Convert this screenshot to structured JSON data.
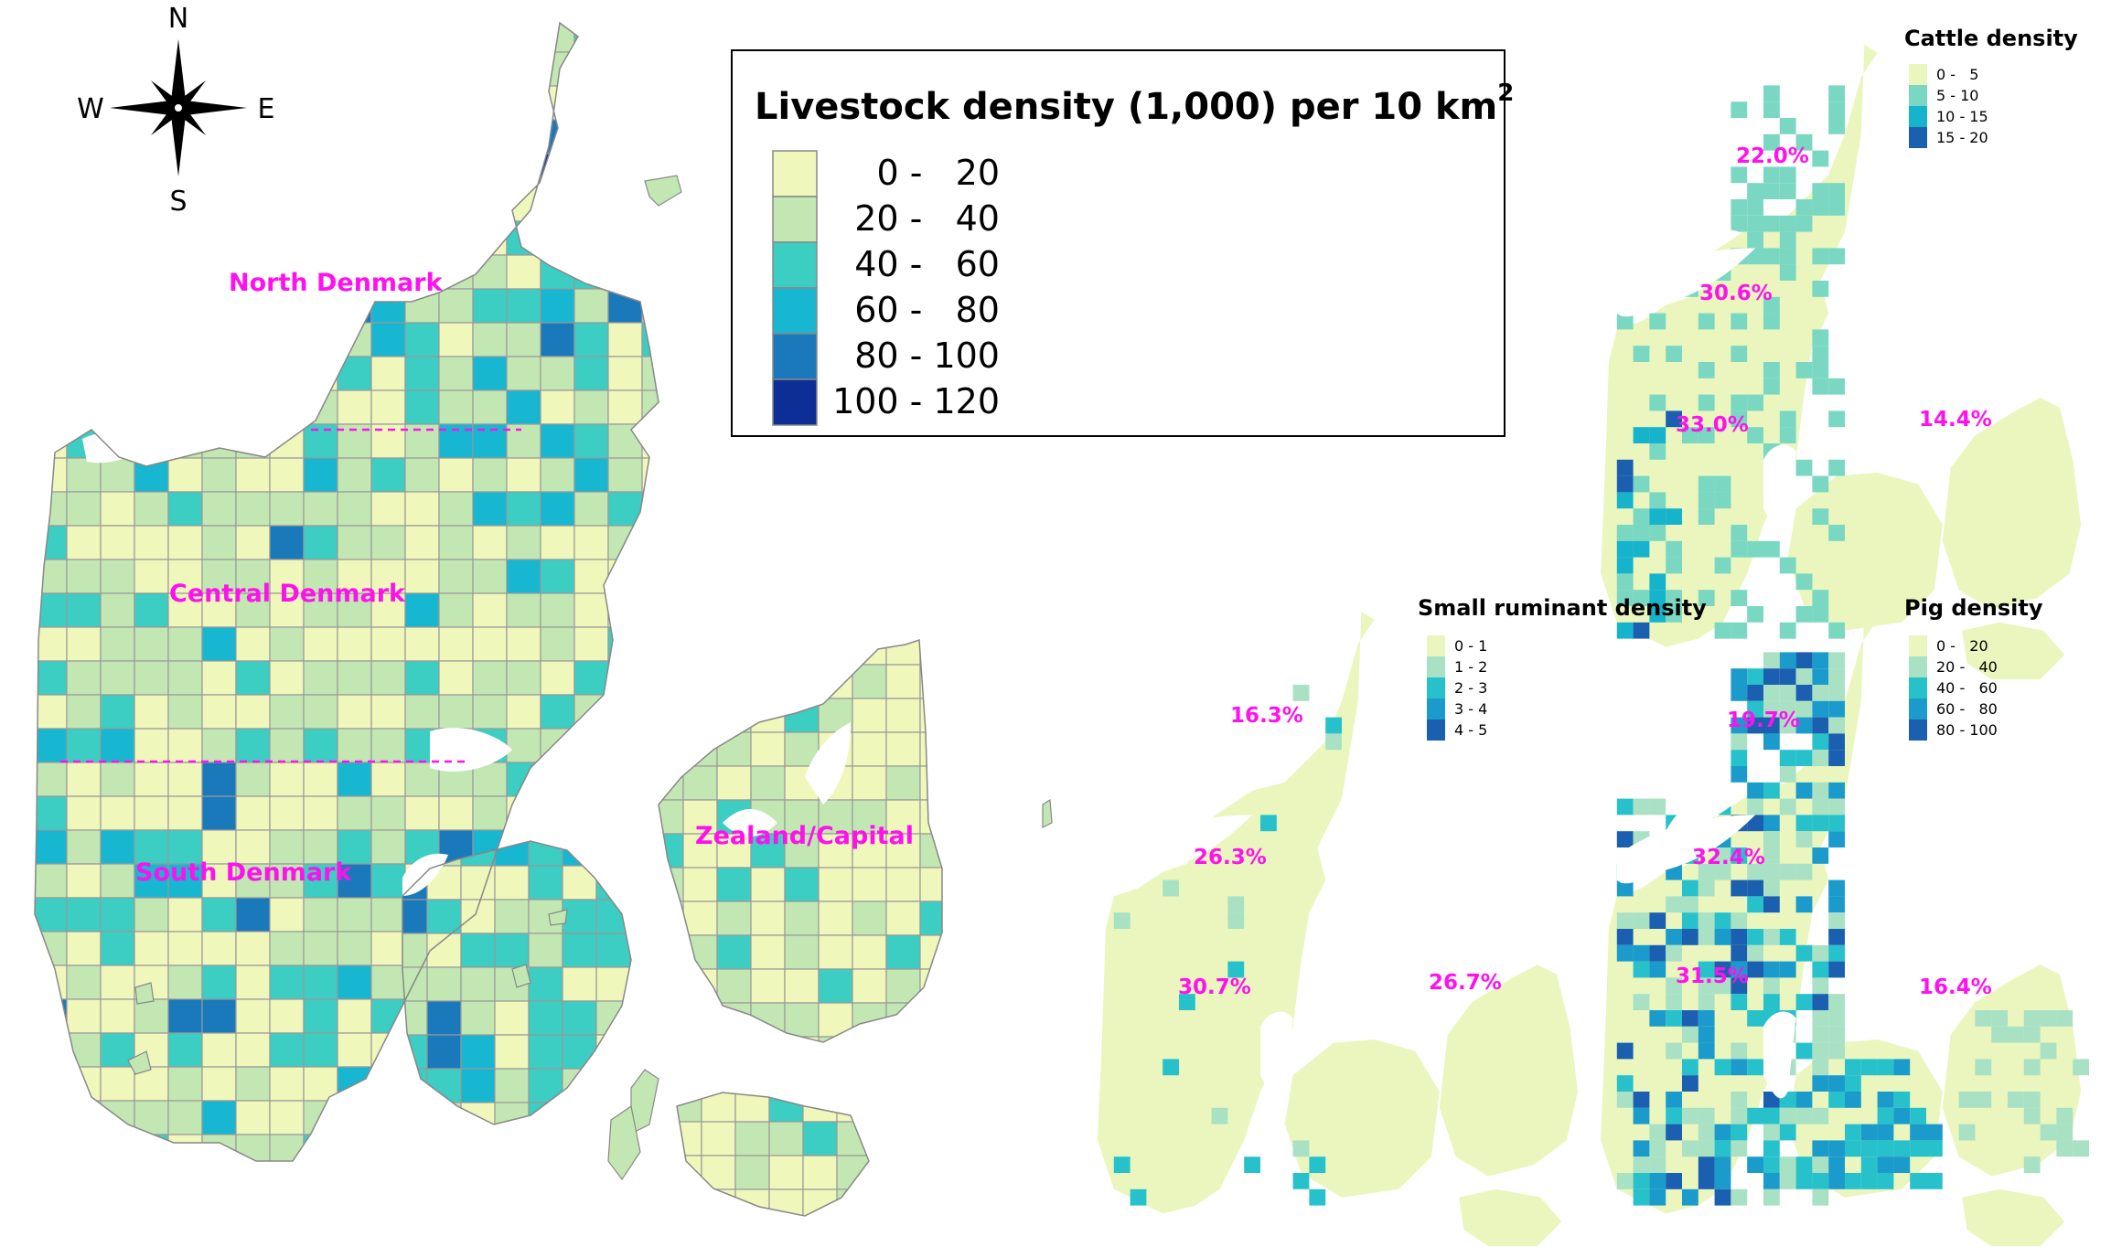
{
  "colors": {
    "scale": [
      "#f0f7bb",
      "#c2e7b3",
      "#3ccdc3",
      "#17b6d1",
      "#1a79bb",
      "#0c2e96"
    ],
    "small_scale": [
      "#eaf6bd",
      "#a8e1c3",
      "#27c1cc",
      "#1b9bcb",
      "#1b5fb0"
    ],
    "grid_line": "#999999",
    "region_label": "#ff11ee",
    "divider": "#ff11ee",
    "land_light": "#eaf6bd"
  },
  "compass": {
    "n": "N",
    "s": "S",
    "e": "E",
    "w": "W"
  },
  "main_legend": {
    "title": "Livestock density (1,000) per 10 km",
    "title_sup": "2",
    "classes": [
      "0 -   20",
      "20 -   40",
      "40 -   60",
      "60 -   80",
      "80 - 100",
      "100 - 120"
    ]
  },
  "main_map": {
    "regions": [
      "North Denmark",
      "Central Denmark",
      "South Denmark",
      "Zealand/Capital"
    ]
  },
  "mini_maps": [
    {
      "id": "cattle",
      "title": "Cattle density",
      "legend": [
        "0 -   5",
        "5 - 10",
        "10 - 15",
        "15 - 20"
      ],
      "percentages": [
        "22.0%",
        "30.6%",
        "33.0%",
        "14.4%"
      ]
    },
    {
      "id": "small-ruminant",
      "title": "Small ruminant  density",
      "legend": [
        "0 - 1",
        "1 - 2",
        "2 - 3",
        "3 - 4",
        "4 - 5"
      ],
      "percentages": [
        "16.3%",
        "26.3%",
        "30.7%",
        "26.7%"
      ]
    },
    {
      "id": "pig",
      "title": "Pig density",
      "legend": [
        "0 -   20",
        "20 -   40",
        "40 -   60",
        "60 -   80",
        "80 - 100"
      ],
      "percentages": [
        "19.7%",
        "32.4%",
        "31.5%",
        "16.4%"
      ]
    }
  ]
}
